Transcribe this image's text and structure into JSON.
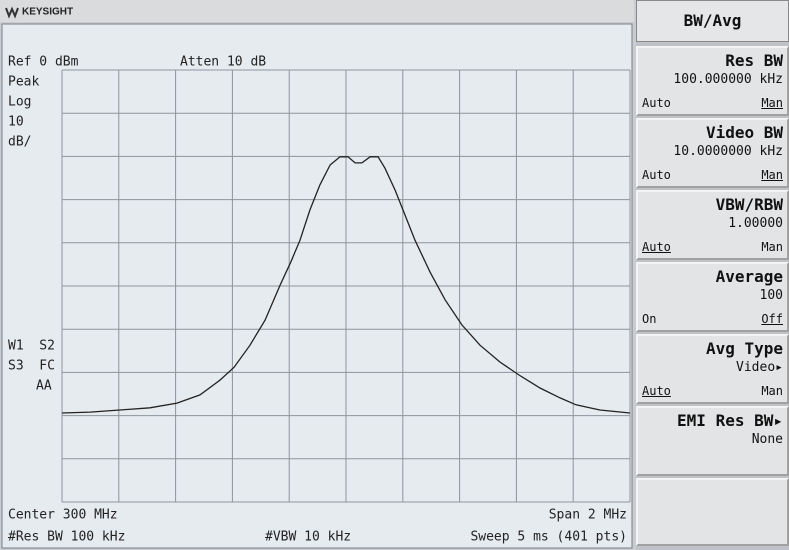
{
  "header": {
    "brand": "KEYSIGHT"
  },
  "screen": {
    "ref": "Ref 0 dBm",
    "atten": "Atten 10 dB",
    "detector": "Peak",
    "scale": "Log",
    "scale_value": "10",
    "scale_unit": "dB/",
    "status_1": "W1  S2",
    "status_2": "S3  FC",
    "status_3": "AA",
    "center": "Center 300 MHz",
    "span": "Span 2 MHz",
    "res_bw": "#Res BW 100 kHz",
    "vbw": "#VBW 10 kHz",
    "sweep": "Sweep 5 ms (401 pts)"
  },
  "menu": {
    "title": "BW/Avg",
    "keys": [
      {
        "name": "Res BW",
        "value": "100.000000 kHz",
        "left": "Auto",
        "right": "Man"
      },
      {
        "name": "Video BW",
        "value": "10.0000000 kHz",
        "left": "Auto",
        "right": "Man"
      },
      {
        "name": "VBW/RBW",
        "value": "1.00000",
        "left": "Auto",
        "right": "Man"
      },
      {
        "name": "Average",
        "value": "100",
        "left": "On",
        "right": "Off"
      },
      {
        "name": "Avg Type",
        "value": "Video▸",
        "left": "Auto",
        "right": "Man"
      },
      {
        "name": "EMI Res BW▸",
        "value": "None"
      }
    ]
  },
  "chart_data": {
    "type": "line",
    "color": "#222222",
    "x": [
      299.0,
      299.099,
      299.204,
      299.31,
      299.405,
      299.486,
      299.556,
      299.606,
      299.662,
      299.715,
      299.768,
      299.806,
      299.838,
      299.873,
      299.908,
      299.944,
      299.979,
      300.007,
      300.032,
      300.056,
      300.085,
      300.113,
      300.137,
      300.173,
      300.208,
      300.243,
      300.296,
      300.349,
      300.408,
      300.472,
      300.542,
      300.609,
      300.683,
      300.754,
      300.81,
      300.894,
      301.0
    ],
    "values": [
      -79.4,
      -79.2,
      -78.7,
      -78.2,
      -77.1,
      -75.2,
      -71.8,
      -68.8,
      -63.7,
      -57.9,
      -49.8,
      -44.4,
      -39.4,
      -32.4,
      -26.6,
      -22.0,
      -20.1,
      -20.1,
      -21.5,
      -21.5,
      -20.1,
      -20.1,
      -22.7,
      -27.8,
      -33.6,
      -39.4,
      -46.8,
      -53.2,
      -59.0,
      -63.7,
      -67.6,
      -70.6,
      -73.6,
      -75.9,
      -77.5,
      -78.7,
      -79.4
    ],
    "xlim": [
      299,
      301
    ],
    "ylim": [
      -100,
      0
    ],
    "xticks": [
      299,
      299.2,
      299.4,
      299.6,
      299.8,
      300,
      300.2,
      300.4,
      300.6,
      300.8,
      301
    ],
    "yticks": [
      0,
      -10,
      -20,
      -30,
      -40,
      -50,
      -60,
      -70,
      -80,
      -90,
      -100
    ],
    "grid": true
  }
}
